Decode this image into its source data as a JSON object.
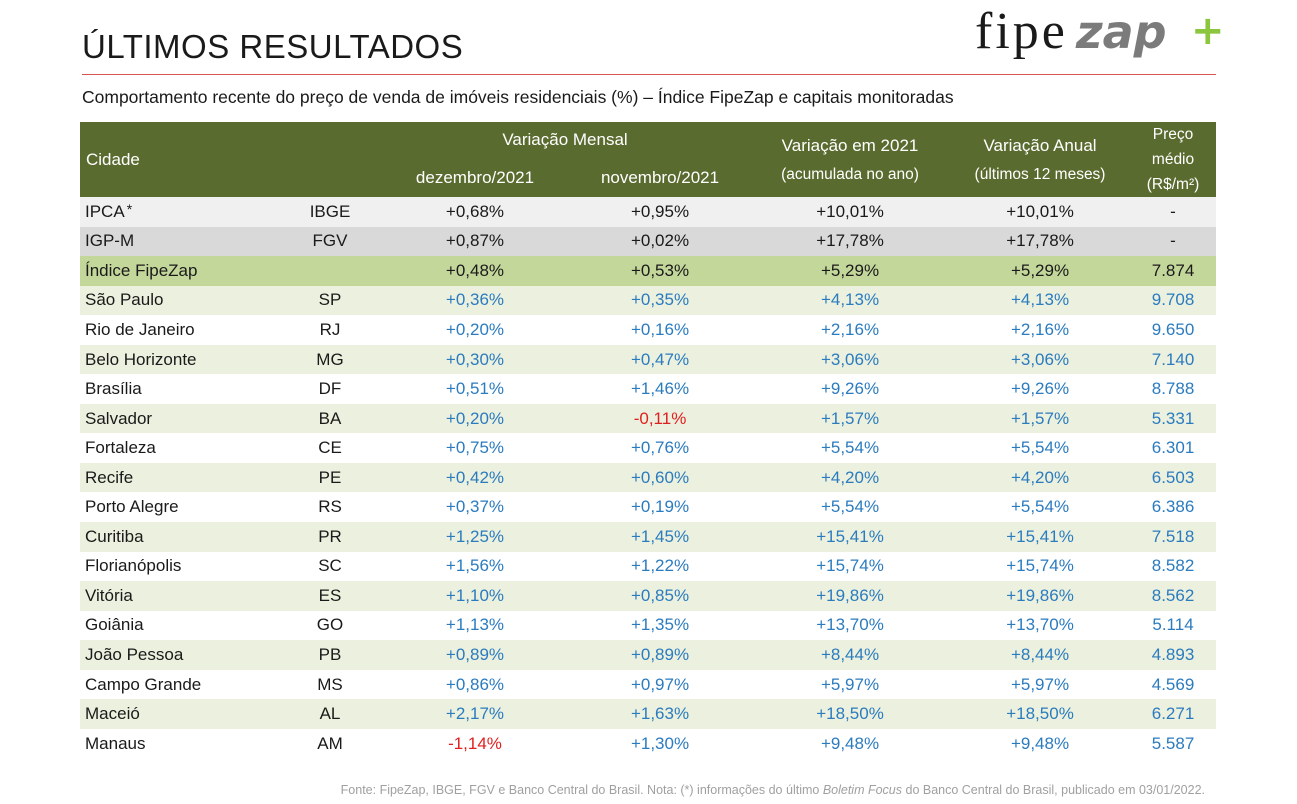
{
  "header": {
    "title": "ÚLTIMOS RESULTADOS",
    "logo_fipe": "fipe",
    "logo_zap": "zap",
    "logo_plus": "+",
    "subtitle": "Comportamento recente do preço de venda de imóveis residenciais (%) – Índice FipeZap e capitais monitoradas"
  },
  "table": {
    "headers": {
      "city": "Cidade",
      "monthly": "Variação Mensal",
      "dec": "dezembro/2021",
      "nov": "novembro/2021",
      "ytd": "Variação em 2021",
      "ytd_sub": "(acumulada no ano)",
      "annual": "Variação Anual",
      "annual_sub": "(últimos 12 meses)",
      "price": "Preço médio",
      "price_sub": "(R$/m²)"
    },
    "rows": [
      {
        "city": "IPCA",
        "mark": "*",
        "src": "IBGE",
        "dec": "+0,68%",
        "nov": "+0,95%",
        "ytd": "+10,01%",
        "annual": "+10,01%",
        "price": "-"
      },
      {
        "city": "IGP-M",
        "src": "FGV",
        "dec": "+0,87%",
        "nov": "+0,02%",
        "ytd": "+17,78%",
        "annual": "+17,78%",
        "price": "-"
      },
      {
        "city": "Índice FipeZap",
        "src": "",
        "dec": "+0,48%",
        "nov": "+0,53%",
        "ytd": "+5,29%",
        "annual": "+5,29%",
        "price": "7.874"
      },
      {
        "city": "São Paulo",
        "src": "SP",
        "dec": "+0,36%",
        "nov": "+0,35%",
        "ytd": "+4,13%",
        "annual": "+4,13%",
        "price": "9.708"
      },
      {
        "city": "Rio de Janeiro",
        "src": "RJ",
        "dec": "+0,20%",
        "nov": "+0,16%",
        "ytd": "+2,16%",
        "annual": "+2,16%",
        "price": "9.650"
      },
      {
        "city": "Belo Horizonte",
        "src": "MG",
        "dec": "+0,30%",
        "nov": "+0,47%",
        "ytd": "+3,06%",
        "annual": "+3,06%",
        "price": "7.140"
      },
      {
        "city": "Brasília",
        "src": "DF",
        "dec": "+0,51%",
        "nov": "+1,46%",
        "ytd": "+9,26%",
        "annual": "+9,26%",
        "price": "8.788"
      },
      {
        "city": "Salvador",
        "src": "BA",
        "dec": "+0,20%",
        "nov": "-0,11%",
        "ytd": "+1,57%",
        "annual": "+1,57%",
        "price": "5.331"
      },
      {
        "city": "Fortaleza",
        "src": "CE",
        "dec": "+0,75%",
        "nov": "+0,76%",
        "ytd": "+5,54%",
        "annual": "+5,54%",
        "price": "6.301"
      },
      {
        "city": "Recife",
        "src": "PE",
        "dec": "+0,42%",
        "nov": "+0,60%",
        "ytd": "+4,20%",
        "annual": "+4,20%",
        "price": "6.503"
      },
      {
        "city": "Porto Alegre",
        "src": "RS",
        "dec": "+0,37%",
        "nov": "+0,19%",
        "ytd": "+5,54%",
        "annual": "+5,54%",
        "price": "6.386"
      },
      {
        "city": "Curitiba",
        "src": "PR",
        "dec": "+1,25%",
        "nov": "+1,45%",
        "ytd": "+15,41%",
        "annual": "+15,41%",
        "price": "7.518"
      },
      {
        "city": "Florianópolis",
        "src": "SC",
        "dec": "+1,56%",
        "nov": "+1,22%",
        "ytd": "+15,74%",
        "annual": "+15,74%",
        "price": "8.582"
      },
      {
        "city": "Vitória",
        "src": "ES",
        "dec": "+1,10%",
        "nov": "+0,85%",
        "ytd": "+19,86%",
        "annual": "+19,86%",
        "price": "8.562"
      },
      {
        "city": "Goiânia",
        "src": "GO",
        "dec": "+1,13%",
        "nov": "+1,35%",
        "ytd": "+13,70%",
        "annual": "+13,70%",
        "price": "5.114"
      },
      {
        "city": "João Pessoa",
        "src": "PB",
        "dec": "+0,89%",
        "nov": "+0,89%",
        "ytd": "+8,44%",
        "annual": "+8,44%",
        "price": "4.893"
      },
      {
        "city": "Campo Grande",
        "src": "MS",
        "dec": "+0,86%",
        "nov": "+0,97%",
        "ytd": "+5,97%",
        "annual": "+5,97%",
        "price": "4.569"
      },
      {
        "city": "Maceió",
        "src": "AL",
        "dec": "+2,17%",
        "nov": "+1,63%",
        "ytd": "+18,50%",
        "annual": "+18,50%",
        "price": "6.271"
      },
      {
        "city": "Manaus",
        "src": "AM",
        "dec": "-1,14%",
        "nov": "+1,30%",
        "ytd": "+9,48%",
        "annual": "+9,48%",
        "price": "5.587"
      }
    ]
  },
  "footnote": {
    "before": "Fonte: FipeZap, IBGE, FGV e Banco Central do Brasil. Nota: (*) informações do último ",
    "emph": "Boletim Focus",
    "after": " do Banco Central do Brasil, publicado em 03/01/2022."
  },
  "colors": {
    "header_bg": "#5a6b2f",
    "fipezap_row": "#c4d79b",
    "alt_row": "#ebf1de",
    "ipca_row": "#f0f0f0",
    "igpm_row": "#d9d9d9",
    "positive_text": "#2b7bbf",
    "negative_text": "#e02020",
    "rule": "#d9534f"
  }
}
